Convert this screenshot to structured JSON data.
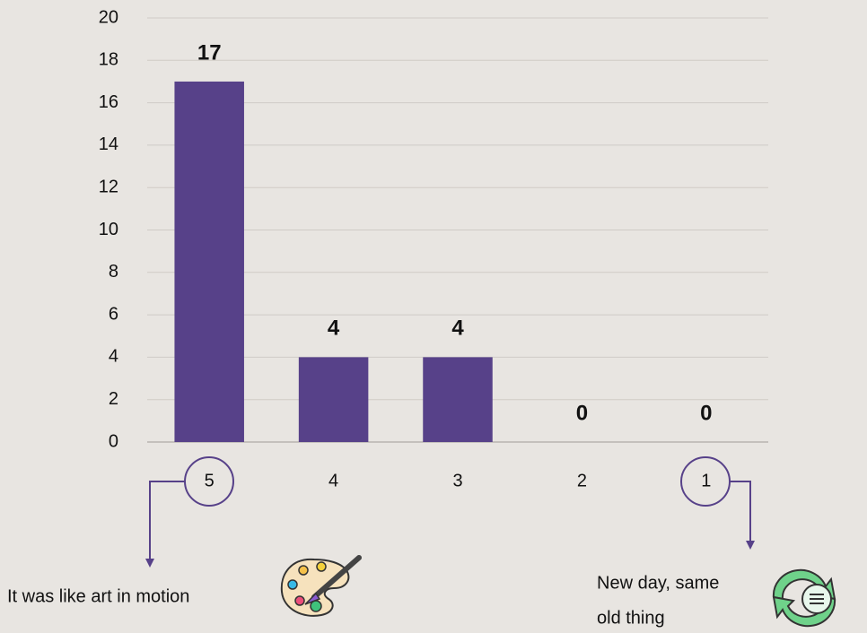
{
  "chart_data": {
    "type": "bar",
    "categories": [
      "5",
      "4",
      "3",
      "2",
      "1"
    ],
    "values": [
      17,
      4,
      4,
      0,
      0
    ],
    "color": "#574189",
    "ylim": [
      0,
      20
    ],
    "yticks": [
      0,
      2,
      4,
      6,
      8,
      10,
      12,
      14,
      16,
      18,
      20
    ],
    "grid": true,
    "annotations": [
      {
        "lines": [
          "It was like art in motion"
        ]
      },
      {
        "lines": [
          "New day, same",
          "old thing"
        ]
      }
    ]
  }
}
